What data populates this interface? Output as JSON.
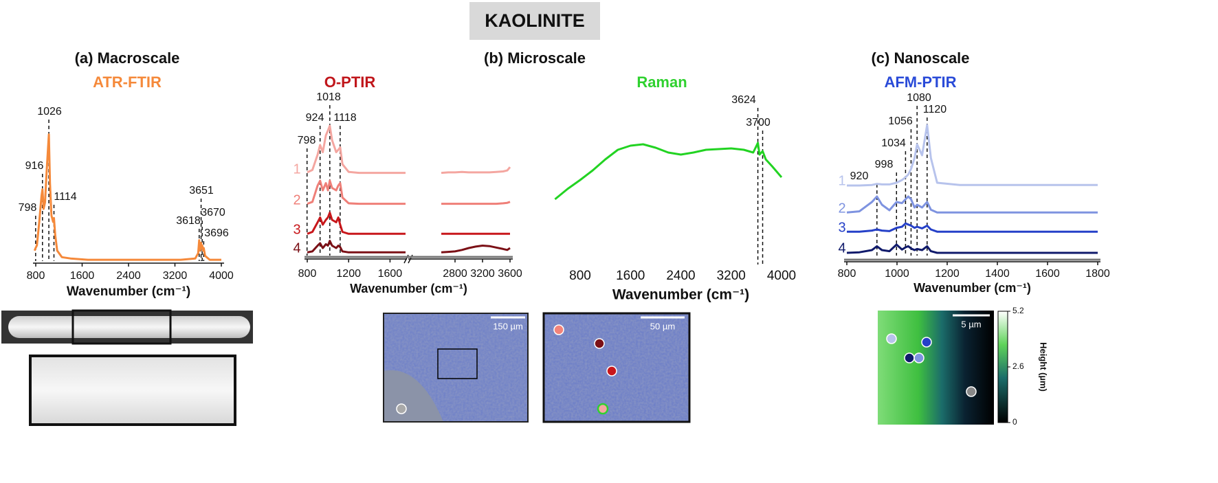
{
  "title": "KAOLINITE",
  "panels": [
    {
      "heading": "(a) Macroscale"
    },
    {
      "heading": "(b) Microscale"
    },
    {
      "heading": "(c) Nanoscale"
    }
  ],
  "chart_data": [
    {
      "type": "line",
      "title": "ATR-FTIR",
      "title_color": "#f5893a",
      "xlabel": "Wavenumber (cm⁻¹)",
      "xlim": [
        800,
        4000
      ],
      "xticks": [
        800,
        1600,
        2400,
        3200,
        4000
      ],
      "ylim": [
        0,
        1
      ],
      "peak_labels": [
        798,
        916,
        1026,
        1114,
        3618,
        3651,
        3670,
        3696
      ],
      "x": [
        780,
        798,
        820,
        860,
        900,
        916,
        935,
        960,
        990,
        1010,
        1026,
        1045,
        1070,
        1100,
        1114,
        1135,
        1170,
        1250,
        1400,
        1700,
        2200,
        2800,
        3300,
        3550,
        3600,
        3618,
        3635,
        3651,
        3660,
        3670,
        3685,
        3696,
        3720,
        3800,
        4000
      ],
      "color": "#f5893a",
      "values": [
        0.08,
        0.1,
        0.12,
        0.3,
        0.5,
        0.55,
        0.4,
        0.45,
        0.7,
        0.85,
        0.97,
        0.6,
        0.35,
        0.3,
        0.33,
        0.2,
        0.08,
        0.03,
        0.02,
        0.01,
        0.01,
        0.01,
        0.01,
        0.02,
        0.06,
        0.16,
        0.08,
        0.14,
        0.1,
        0.12,
        0.08,
        0.1,
        0.04,
        0.01,
        0.01
      ]
    },
    {
      "type": "line",
      "title": "O-PTIR",
      "title_color": "#c0161b",
      "xlabel": "Wavenumber (cm⁻¹)",
      "xlim": [
        800,
        3600
      ],
      "xbreak": [
        1750,
        2600
      ],
      "xticks": [
        800,
        1200,
        1600,
        2800,
        3200,
        3600
      ],
      "ylim": [
        0,
        1
      ],
      "peak_labels": [
        798,
        924,
        1018,
        1118
      ],
      "x": [
        800,
        850,
        900,
        924,
        950,
        980,
        1000,
        1018,
        1040,
        1080,
        1100,
        1118,
        1140,
        1200,
        1300,
        1500,
        1750,
        2200,
        2600,
        2700,
        2800,
        2900,
        3000,
        3100,
        3200,
        3300,
        3400,
        3500,
        3560,
        3600
      ],
      "series": [
        {
          "name": "1",
          "color": "#f4a6a0",
          "values": [
            0.03,
            0.08,
            0.4,
            0.6,
            0.45,
            0.8,
            0.9,
            1.0,
            0.7,
            0.45,
            0.5,
            0.55,
            0.2,
            0.04,
            0.02,
            0.02,
            0.02,
            null,
            0.02,
            0.03,
            0.03,
            0.04,
            0.03,
            0.03,
            0.03,
            0.03,
            0.04,
            0.05,
            0.07,
            0.14
          ]
        },
        {
          "name": "2",
          "color": "#ef7f78",
          "values": [
            0.02,
            0.06,
            0.4,
            0.5,
            0.3,
            0.45,
            0.3,
            0.5,
            0.35,
            0.3,
            0.4,
            0.45,
            0.15,
            0.03,
            0.02,
            0.02,
            0.02,
            null,
            0.02,
            0.02,
            0.02,
            0.02,
            0.02,
            0.02,
            0.02,
            0.02,
            0.02,
            0.03,
            0.04,
            0.06
          ]
        },
        {
          "name": "3",
          "color": "#c8171b",
          "values": [
            0.01,
            0.05,
            0.25,
            0.35,
            0.2,
            0.3,
            0.35,
            0.45,
            0.3,
            0.25,
            0.35,
            0.2,
            0.05,
            0.01,
            0.01,
            0.01,
            0.01,
            null,
            0.01,
            0.01,
            0.01,
            0.01,
            0.01,
            0.01,
            0.01,
            0.01,
            0.01,
            0.01,
            0.01,
            0.01
          ]
        },
        {
          "name": "4",
          "color": "#7b1016",
          "values": [
            0.01,
            0.03,
            0.15,
            0.2,
            0.1,
            0.18,
            0.15,
            0.25,
            0.15,
            0.1,
            0.15,
            0.12,
            0.03,
            0.01,
            0.01,
            0.01,
            0.01,
            null,
            0.01,
            0.02,
            0.03,
            0.06,
            0.1,
            0.13,
            0.15,
            0.14,
            0.11,
            0.08,
            0.06,
            0.1
          ]
        }
      ]
    },
    {
      "type": "line",
      "title": "Raman",
      "title_color": "#2fd12f",
      "xlabel": "Wavenumber (cm⁻¹)",
      "xlim": [
        800,
        4000
      ],
      "xticks": [
        800,
        1600,
        2400,
        3200,
        4000
      ],
      "ylim": [
        0,
        1
      ],
      "peak_labels": [
        3624,
        3700
      ],
      "x": [
        400,
        600,
        800,
        1000,
        1200,
        1400,
        1600,
        1800,
        2000,
        2200,
        2400,
        2600,
        2800,
        3000,
        3200,
        3400,
        3550,
        3624,
        3650,
        3700,
        3750,
        3850,
        4000
      ],
      "color": "#22d322",
      "values": [
        0.1,
        0.25,
        0.38,
        0.52,
        0.68,
        0.82,
        0.88,
        0.9,
        0.85,
        0.78,
        0.75,
        0.78,
        0.82,
        0.83,
        0.84,
        0.82,
        0.78,
        0.92,
        0.75,
        0.8,
        0.68,
        0.58,
        0.42
      ]
    },
    {
      "type": "line",
      "title": "AFM-PTIR",
      "title_color": "#2a4bd8",
      "xlabel": "Wavenumber (cm⁻¹)",
      "xlim": [
        800,
        1800
      ],
      "xticks": [
        800,
        1000,
        1200,
        1400,
        1600,
        1800
      ],
      "ylim": [
        0,
        1.2
      ],
      "peak_labels": [
        920,
        998,
        1034,
        1056,
        1080,
        1120
      ],
      "x": [
        800,
        850,
        900,
        920,
        940,
        970,
        998,
        1020,
        1034,
        1045,
        1056,
        1070,
        1080,
        1100,
        1120,
        1135,
        1160,
        1250,
        1400,
        1600,
        1800
      ],
      "series": [
        {
          "name": "1",
          "color": "#b7c3ec",
          "values": [
            0,
            0,
            0.01,
            0.03,
            0.02,
            0.02,
            0.05,
            0.1,
            0.15,
            0.2,
            0.3,
            0.5,
            0.75,
            0.55,
            1.1,
            0.5,
            0.05,
            0.01,
            0.01,
            0.01,
            0.01
          ]
        },
        {
          "name": "2",
          "color": "#7e93e0",
          "values": [
            0.01,
            0.03,
            0.2,
            0.3,
            0.15,
            0.05,
            0.2,
            0.18,
            0.25,
            0.3,
            0.25,
            0.1,
            0.15,
            0.1,
            0.2,
            0.06,
            0.01,
            0.01,
            0.01,
            0.01,
            0.01
          ]
        },
        {
          "name": "3",
          "color": "#2540c8",
          "values": [
            0.01,
            0.01,
            0.03,
            0.05,
            0.03,
            0.02,
            0.08,
            0.1,
            0.16,
            0.14,
            0.12,
            0.08,
            0.1,
            0.07,
            0.12,
            0.05,
            0.01,
            0.01,
            0.01,
            0.01,
            0.01
          ]
        },
        {
          "name": "4",
          "color": "#101a6b",
          "values": [
            0,
            0.01,
            0.05,
            0.12,
            0.05,
            0.03,
            0.15,
            0.06,
            0.1,
            0.12,
            0.08,
            0.05,
            0.07,
            0.05,
            0.12,
            0.03,
            0,
            0,
            0,
            0,
            0
          ]
        }
      ]
    }
  ],
  "images": {
    "micro_scale_bars": [
      "150 µm",
      "50 µm"
    ],
    "afm_scale_bar": "5 µm",
    "colorbar": {
      "label": "Height (µm)",
      "ticks": [
        0,
        2.6,
        5.2
      ],
      "lim": [
        0,
        5.2
      ]
    }
  }
}
